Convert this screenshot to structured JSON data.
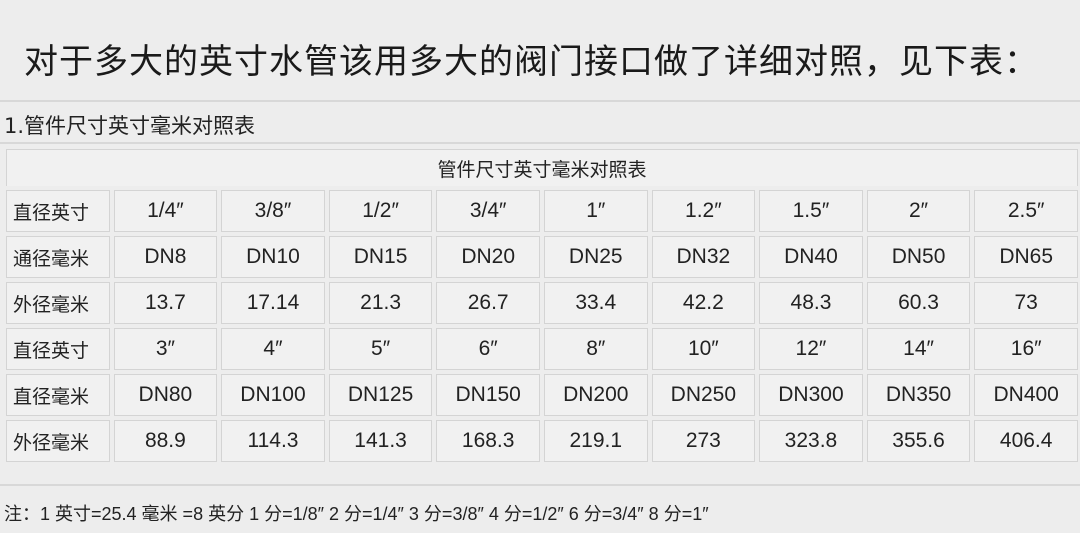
{
  "heading": "对于多大的英寸水管该用多大的阀门接口做了详细对照，见下表：",
  "subtitle": "1.管件尺寸英寸毫米对照表",
  "table": {
    "caption": "管件尺寸英寸毫米对照表",
    "rows": [
      {
        "label": "直径英寸",
        "cells": [
          "1/4″",
          "3/8″",
          "1/2″",
          "3/4″",
          "1″",
          "1.2″",
          "1.5″",
          "2″",
          "2.5″"
        ]
      },
      {
        "label": "通径毫米",
        "cells": [
          "DN8",
          "DN10",
          "DN15",
          "DN20",
          "DN25",
          "DN32",
          "DN40",
          "DN50",
          "DN65"
        ]
      },
      {
        "label": "外径毫米",
        "cells": [
          "13.7",
          "17.14",
          "21.3",
          "26.7",
          "33.4",
          "42.2",
          "48.3",
          "60.3",
          "73"
        ]
      },
      {
        "label": "直径英寸",
        "cells": [
          "3″",
          "4″",
          "5″",
          "6″",
          "8″",
          "10″",
          "12″",
          "14″",
          "16″"
        ]
      },
      {
        "label": "直径毫米",
        "cells": [
          "DN80",
          "DN100",
          "DN125",
          "DN150",
          "DN200",
          "DN250",
          "DN300",
          "DN350",
          "DN400"
        ]
      },
      {
        "label": "外径毫米",
        "cells": [
          "88.9",
          "114.3",
          "141.3",
          "168.3",
          "219.1",
          "273",
          "323.8",
          "355.6",
          "406.4"
        ]
      }
    ]
  },
  "note": "注：1 英寸=25.4 毫米 =8 英分 1 分=1/8″ 2 分=1/4″ 3 分=3/8″ 4 分=1/2″ 6 分=3/4″ 8 分=1″"
}
